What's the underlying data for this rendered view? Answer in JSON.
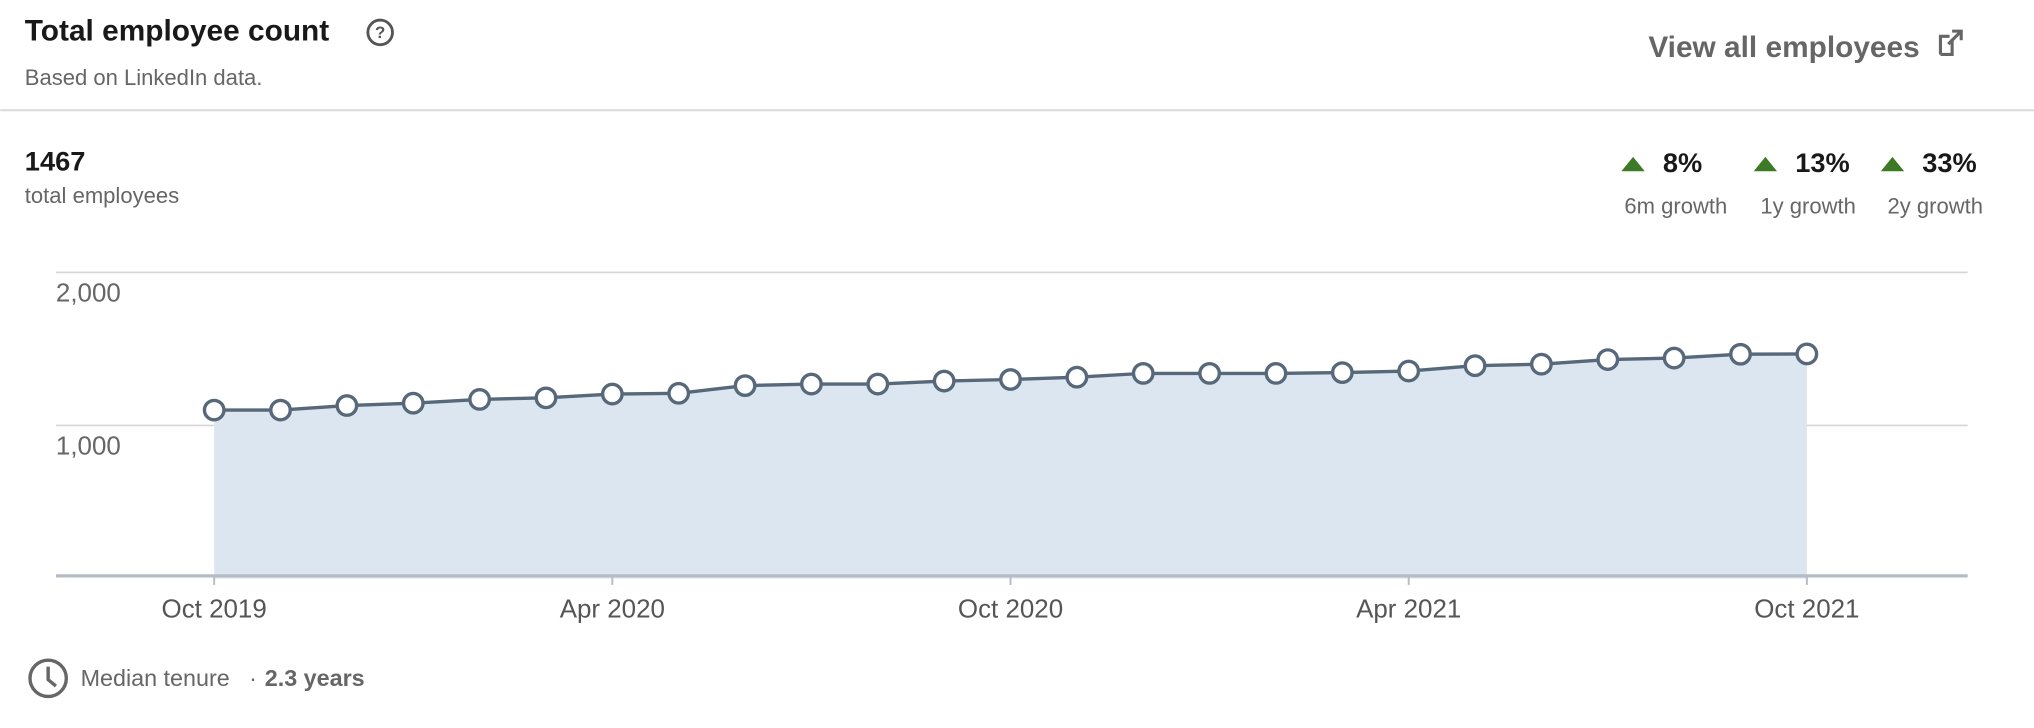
{
  "header": {
    "title": "Total employee count",
    "subtitle": "Based on LinkedIn data.",
    "link": "View all employees"
  },
  "summary": {
    "count": 1467,
    "count_label": "total employees",
    "growth": [
      {
        "value": "8%",
        "label": "6m growth"
      },
      {
        "value": "13%",
        "label": "1y growth"
      },
      {
        "value": "33%",
        "label": "2y growth"
      }
    ]
  },
  "chart_data": {
    "type": "line",
    "categories": [
      "Oct 2019",
      null,
      null,
      null,
      null,
      null,
      "Apr 2020",
      null,
      null,
      null,
      null,
      null,
      "Oct 2020",
      null,
      null,
      null,
      null,
      null,
      "Apr 2021",
      null,
      null,
      null,
      null,
      null,
      "Oct 2021"
    ],
    "values": [
      1100,
      1100,
      1130,
      1145,
      1170,
      1180,
      1205,
      1210,
      1260,
      1270,
      1270,
      1290,
      1300,
      1315,
      1340,
      1340,
      1340,
      1345,
      1355,
      1390,
      1400,
      1430,
      1440,
      1465,
      1467
    ],
    "color": "#56687a",
    "fill": "#dce6f1",
    "ylim": [
      0,
      2000
    ],
    "yticks": [
      {
        "value": 1000,
        "label": "1,000"
      },
      {
        "value": 2000,
        "label": "2,000"
      }
    ],
    "grid": true
  },
  "footer": {
    "label": "Median tenure",
    "separator": "·",
    "value": "2.3 years"
  }
}
